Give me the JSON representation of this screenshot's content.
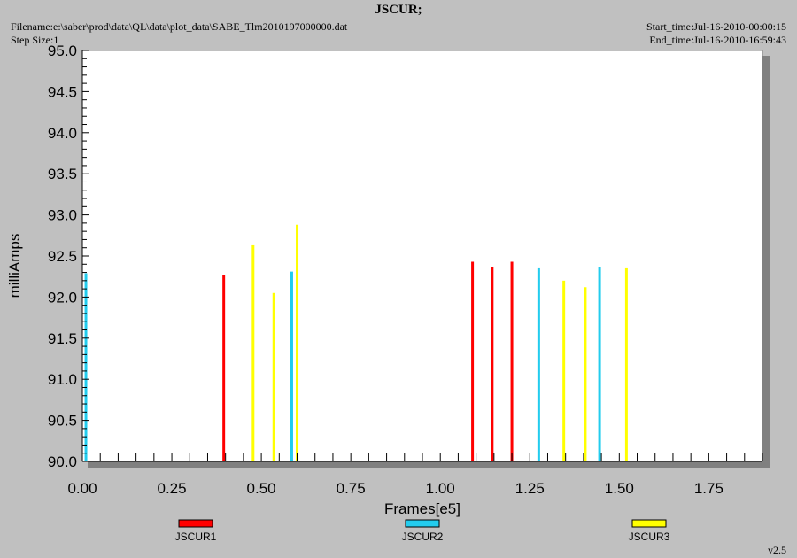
{
  "header": {
    "title": "JSCUR;",
    "filename": "Filename:e:\\saber\\prod\\data\\QL\\data\\plot_data\\SABE_Tlm2010197000000.dat",
    "step_size": "Step Size:1",
    "start_time": "Start_time:Jul-16-2010-00:00:15",
    "end_time": "End_time:Jul-16-2010-16:59:43",
    "version": "v2.5"
  },
  "chart_data": {
    "type": "bar",
    "title": "JSCUR;",
    "xlabel": "Frames[e5]",
    "ylabel": "milliAmps",
    "xlim": [
      0,
      1.9
    ],
    "ylim": [
      90.0,
      95.0
    ],
    "x_ticks": [
      0.0,
      0.25,
      0.5,
      0.75,
      1.0,
      1.25,
      1.5,
      1.75
    ],
    "x_tick_labels": [
      "0.00",
      "0.25",
      "0.50",
      "0.75",
      "1.00",
      "1.25",
      "1.50",
      "1.75"
    ],
    "y_ticks": [
      90.0,
      90.5,
      91.0,
      91.5,
      92.0,
      92.5,
      93.0,
      93.5,
      94.0,
      94.5,
      95.0
    ],
    "y_tick_labels": [
      "90.0",
      "90.5",
      "91.0",
      "91.5",
      "92.0",
      "92.5",
      "93.0",
      "93.5",
      "94.0",
      "94.5",
      "95.0"
    ],
    "grid": false,
    "legend_position": "bottom",
    "series": [
      {
        "name": "JSCUR1",
        "color": "#ff0000",
        "x": [
          0.395,
          1.09,
          1.145,
          1.2
        ],
        "values": [
          92.27,
          92.43,
          92.37,
          92.43
        ]
      },
      {
        "name": "JSCUR2",
        "color": "#22ccee",
        "x": [
          0.01,
          0.585,
          1.275,
          1.445
        ],
        "values": [
          92.29,
          92.31,
          92.35,
          92.37
        ]
      },
      {
        "name": "JSCUR3",
        "color": "#ffff00",
        "x": [
          0.477,
          0.535,
          0.6,
          1.345,
          1.405,
          1.52
        ],
        "values": [
          92.63,
          92.05,
          92.88,
          92.2,
          92.12,
          92.35
        ]
      }
    ]
  }
}
